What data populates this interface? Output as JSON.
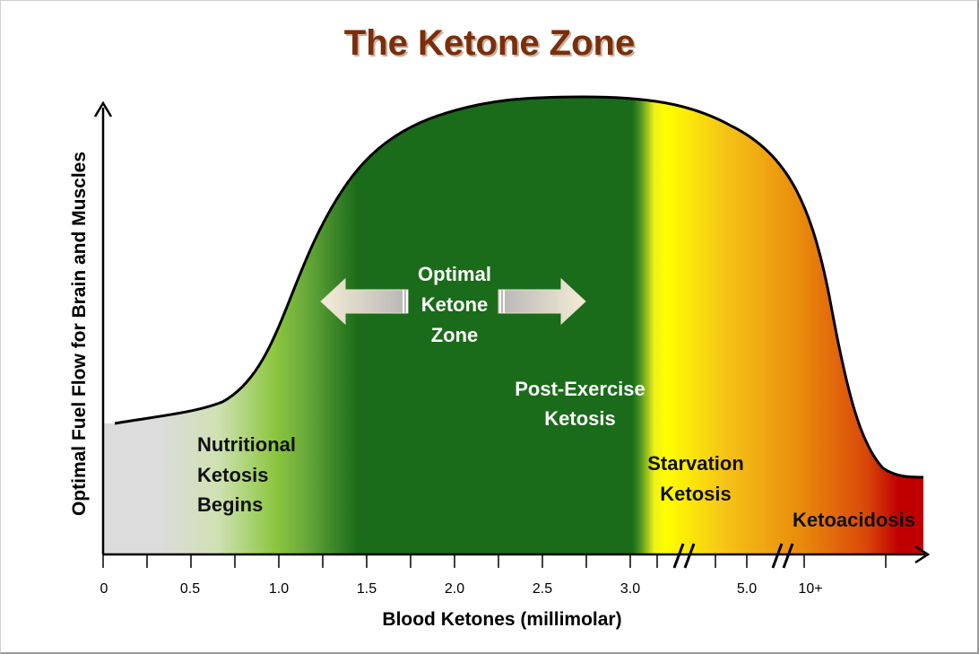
{
  "chart_data": {
    "type": "area",
    "title": "The Ketone Zone",
    "xlabel": "Blood Ketones (millimolar)",
    "ylabel": "Optimal Fuel Flow for Brain and Muscles",
    "x_tick_labels": [
      "0",
      "0.5",
      "1.0",
      "1.5",
      "2.0",
      "2.5",
      "3.0",
      "5.0",
      "10+"
    ],
    "x_axis_breaks": [
      "between 3.0 and 5.0",
      "between 5.0 and 10+"
    ],
    "grid": false,
    "legend": "none",
    "zones": [
      {
        "name": "Nutritional Ketosis Begins",
        "lines": [
          "Nutritional",
          "Ketosis",
          "Begins"
        ],
        "color": "#8cc63f"
      },
      {
        "name": "Optimal Ketone Zone",
        "lines": [
          "Optimal",
          "Ketone",
          "Zone"
        ],
        "color": "#1a6b1a"
      },
      {
        "name": "Post-Exercise Ketosis",
        "lines": [
          "Post-Exercise",
          "Ketosis"
        ],
        "color": "#1a6b1a"
      },
      {
        "name": "Starvation Ketosis",
        "lines": [
          "Starvation",
          "Ketosis"
        ],
        "color": "#ffff00"
      },
      {
        "name": "Ketoacidosis",
        "lines": [
          "Ketoacidosis"
        ],
        "color": "#c00000"
      }
    ],
    "colors": {
      "title": "#7a2e0c",
      "baseline": "#d9d9d9",
      "light_green": "#8cc63f",
      "dark_green": "#1a6b1a",
      "yellow": "#ffff00",
      "orange": "#e98b0c",
      "red": "#c00000",
      "arrow": "#f2ecd8"
    }
  }
}
